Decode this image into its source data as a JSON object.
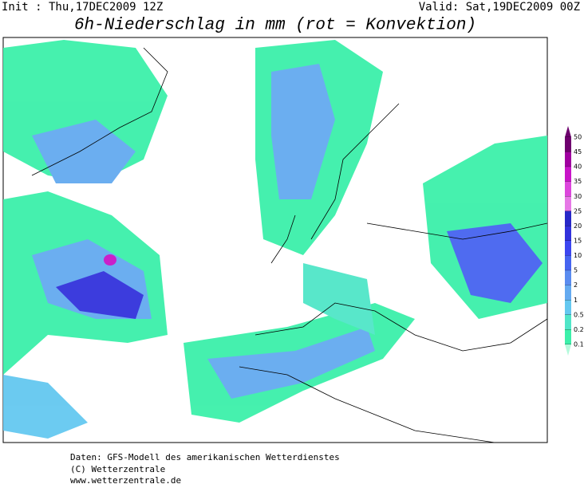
{
  "header": {
    "init": "Init : Thu,17DEC2009 12Z",
    "valid": "Valid: Sat,19DEC2009 00Z",
    "title": "6h-Niederschlag in mm (rot = Konvektion)"
  },
  "legend": {
    "levels": [
      50,
      45,
      40,
      35,
      30,
      25,
      20,
      15,
      10,
      5,
      2,
      1,
      0.5,
      0.2,
      0.1
    ],
    "colors": [
      "#6e006e",
      "#a000a0",
      "#c814c8",
      "#dc46dc",
      "#e678e6",
      "#2828c8",
      "#3232dc",
      "#3c46f0",
      "#4664f0",
      "#5a8cf0",
      "#64aaf0",
      "#64c8f0",
      "#50e6c8",
      "#3cf0aa",
      "#b4fadc"
    ]
  },
  "footer": {
    "lines": [
      "Daten: GFS-Modell des amerikanischen Wetterdienstes",
      "(C) Wetterzentrale",
      "www.wetterzentrale.de"
    ]
  }
}
